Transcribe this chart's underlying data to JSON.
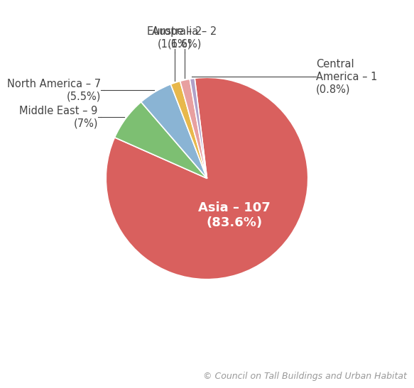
{
  "slices": [
    {
      "label": "Asia – 107\n(83.6%)",
      "value": 107,
      "color": "#d9605e",
      "pct": 83.6
    },
    {
      "label": "Middle East – 9\n(7%)",
      "value": 9,
      "color": "#7dbf72",
      "pct": 7.0
    },
    {
      "label": "North America – 7\n(5.5%)",
      "value": 7,
      "color": "#8ab4d4",
      "pct": 5.5
    },
    {
      "label": "Europe – 2\n(1.6%)",
      "value": 2,
      "color": "#e8b84b",
      "pct": 1.6
    },
    {
      "label": "Australia – 2\n(1.6%)",
      "value": 2,
      "color": "#e8a0a0",
      "pct": 1.6
    },
    {
      "label": "Central America – 1\n(0.8%)",
      "value": 1,
      "color": "#b0a0c8",
      "pct": 0.8
    }
  ],
  "startangle": 97,
  "asia_label": "Asia – 107\n(83.6%)",
  "background_color": "#ffffff",
  "annotation_color": "#444444",
  "annotation_fontsize": 10.5,
  "asia_label_fontsize": 13,
  "credit_text": "© Council on Tall Buildings and Urban Habitat",
  "credit_fontsize": 9,
  "edge_color": "#ffffff",
  "edge_lw": 1.2
}
